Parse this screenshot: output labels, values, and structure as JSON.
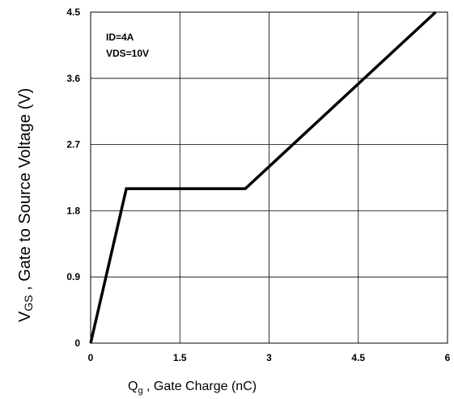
{
  "chart_data": {
    "type": "line",
    "title": "",
    "x_axis": {
      "label_main": "Q",
      "label_sub": "g",
      "label_rest": " , Gate Charge (nC)",
      "ticks": [
        "0",
        "1.5",
        "3",
        "4.5",
        "6"
      ],
      "range": [
        0,
        6
      ]
    },
    "y_axis": {
      "label_main": "V",
      "label_sub": "GS",
      "label_rest": " , Gate to Source Voltage (V)",
      "ticks": [
        "0",
        "0.9",
        "1.8",
        "2.7",
        "3.6",
        "4.5"
      ],
      "range": [
        0,
        4.5
      ]
    },
    "annotations": [
      "ID=4A",
      "VDS=10V"
    ],
    "grid": true,
    "series": [
      {
        "x": [
          0,
          0.6,
          2.6,
          5.8
        ],
        "y": [
          0,
          2.1,
          2.1,
          4.5
        ]
      }
    ]
  }
}
